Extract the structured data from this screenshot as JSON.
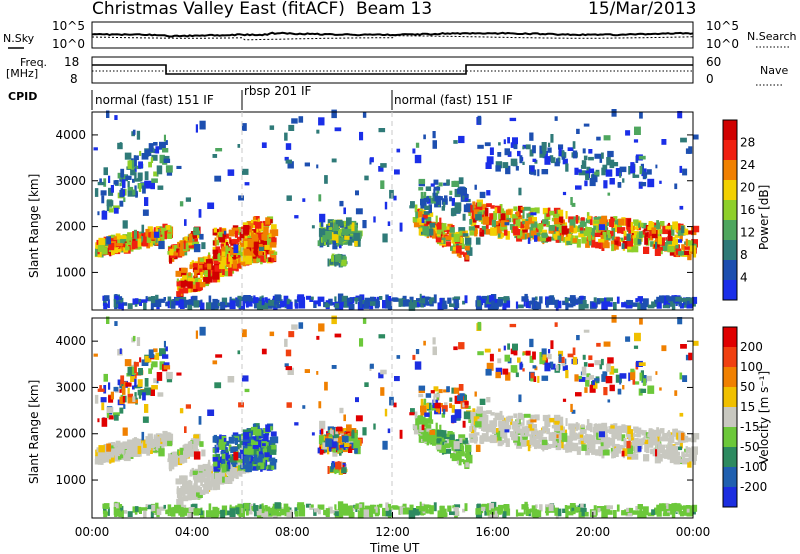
{
  "header": {
    "title": "Christmas Valley East (fitACF)",
    "beam": "Beam 13",
    "date": "15/Mar/2013"
  },
  "top_panels": {
    "nsky_label": "N.Sky",
    "nsky_ticks": [
      "10^5",
      "10^0"
    ],
    "nsearch_label": "N.Search",
    "nsearch_ticks": [
      "10^5",
      "10^0"
    ],
    "freq_label_1": "Freq.",
    "freq_label_2": "[MHz]",
    "freq_ticks": [
      "18",
      "8"
    ],
    "nave_label": "Nave",
    "nave_ticks": [
      "60",
      "0"
    ],
    "cpid_label": "CPID",
    "cpid_segments": [
      {
        "label": "normal (fast) 151 IF",
        "start_h": 0,
        "end_h": 6
      },
      {
        "label": "rbsp 201 IF",
        "start_h": 6,
        "end_h": 12
      },
      {
        "label": "normal (fast) 151 IF",
        "start_h": 12,
        "end_h": 24
      }
    ]
  },
  "chart_data": [
    {
      "type": "heatmap",
      "title": "Power",
      "ylabel": "Slant Range [km]",
      "yticks": [
        "1000",
        "2000",
        "3000",
        "4000"
      ],
      "ylim": [
        180,
        4500
      ],
      "xlim": [
        0,
        24
      ],
      "colorbar_label": "Power [dB]",
      "colorbar_ticks": [
        "4",
        "8",
        "12",
        "16",
        "20",
        "24",
        "28"
      ],
      "colorbar_colors": [
        "#1a2ee8",
        "#1d4fb0",
        "#2f7a78",
        "#4ea65e",
        "#8ecf2a",
        "#f2d000",
        "#f08000",
        "#f02010",
        "#d00000"
      ]
    },
    {
      "type": "heatmap",
      "title": "Velocity",
      "ylabel": "Slant Range [km]",
      "yticks": [
        "1000",
        "2000",
        "3000",
        "4000"
      ],
      "ylim": [
        180,
        4500
      ],
      "xlim": [
        0,
        24
      ],
      "xticks": [
        "00:00",
        "04:00",
        "08:00",
        "12:00",
        "16:00",
        "20:00",
        "00:00"
      ],
      "xlabel": "Time UT",
      "colorbar_label": "Velocity [m s⁻¹]",
      "colorbar_ticks": [
        "200",
        "100",
        "50",
        "15",
        "-15",
        "-50",
        "-100",
        "-200"
      ],
      "colorbar_colors": [
        "#1c2ee0",
        "#2060b0",
        "#2d8a60",
        "#6cc83a",
        "#c8c8c0",
        "#f0c000",
        "#f08000",
        "#f04010",
        "#e00000"
      ]
    }
  ]
}
